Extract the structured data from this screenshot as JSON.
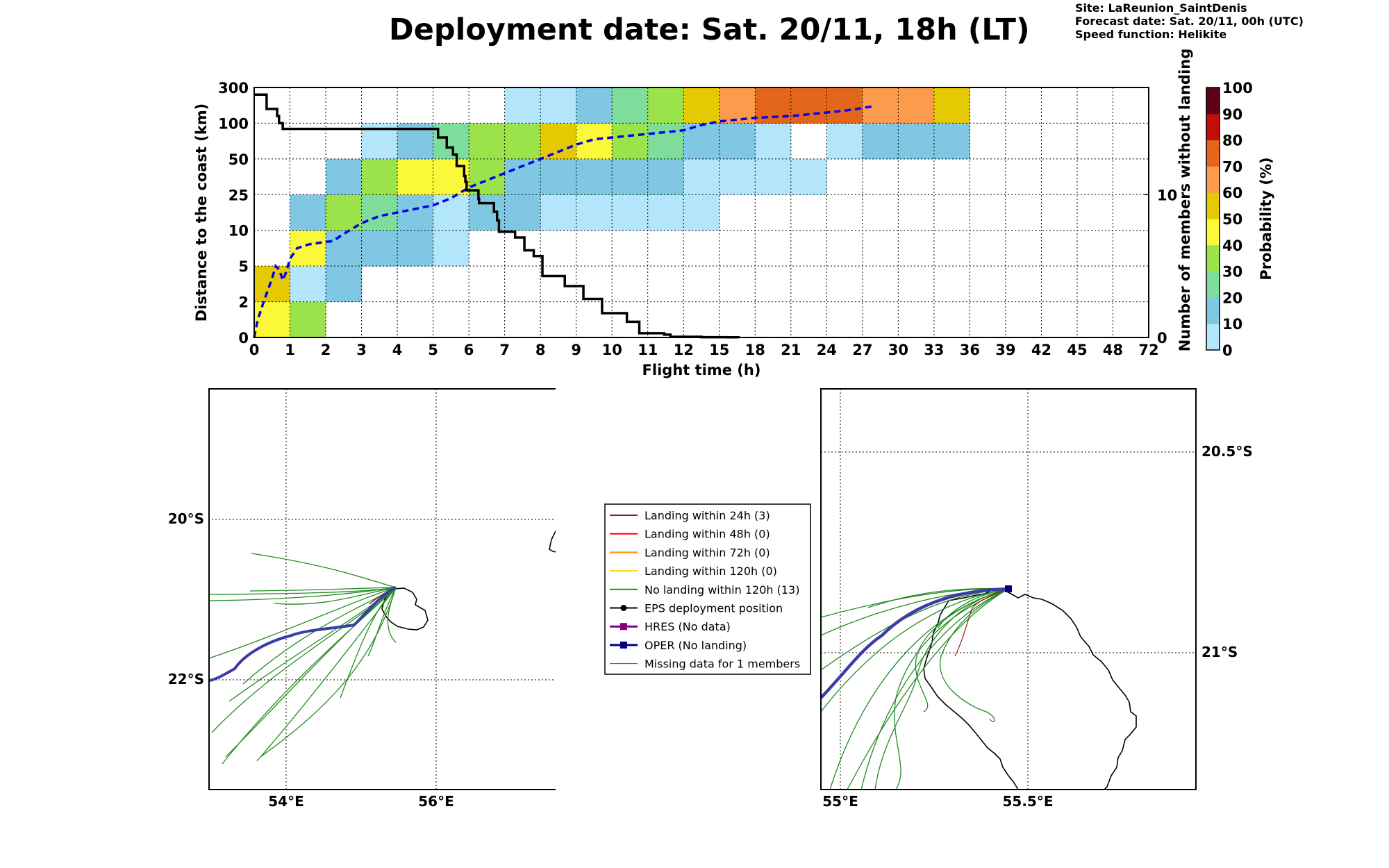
{
  "header": {
    "title": "Deployment date: Sat. 20/11, 18h (LT)",
    "site": "Site: LaReunion_SaintDenis",
    "forecast": "Forecast date: Sat. 20/11, 00h (UTC)",
    "speed": "Speed function: Helikite"
  },
  "chart_data": [
    {
      "type": "heatmap",
      "xlabel": "Flight time (h)",
      "ylabel": "Distance to the coast (km)",
      "y2label": "Number of members without landing",
      "x_ticks": [
        "0",
        "1",
        "2",
        "3",
        "4",
        "5",
        "6",
        "7",
        "8",
        "9",
        "10",
        "11",
        "12",
        "15",
        "18",
        "21",
        "24",
        "27",
        "30",
        "33",
        "36",
        "39",
        "42",
        "45",
        "48",
        "72"
      ],
      "y_ticks": [
        "0",
        "2",
        "5",
        "10",
        "25",
        "50",
        "100",
        "300"
      ],
      "y2_ticks": [
        "0",
        "10"
      ],
      "y2_range": [
        0,
        17.5
      ],
      "colorbar": {
        "label": "Probability (%)",
        "ticks": [
          "0",
          "10",
          "20",
          "30",
          "40",
          "50",
          "60",
          "70",
          "80",
          "90",
          "100"
        ],
        "colors": [
          "#b3e5fb",
          "#7fc7e2",
          "#7edd9a",
          "#9be24b",
          "#fbf83a",
          "#e5c902",
          "#fd9b4c",
          "#e4661d",
          "#c20d0a",
          "#5e0016"
        ]
      },
      "cells": [
        {
          "x": 0,
          "y": 0,
          "p": 40
        },
        {
          "x": 0,
          "y": 1,
          "p": 50
        },
        {
          "x": 1,
          "y": 0,
          "p": 30
        },
        {
          "x": 1,
          "y": 1,
          "p": 0
        },
        {
          "x": 1,
          "y": 2,
          "p": 40
        },
        {
          "x": 1,
          "y": 3,
          "p": 10
        },
        {
          "x": 2,
          "y": 1,
          "p": 10
        },
        {
          "x": 2,
          "y": 2,
          "p": 10
        },
        {
          "x": 2,
          "y": 3,
          "p": 30
        },
        {
          "x": 2,
          "y": 4,
          "p": 10
        },
        {
          "x": 3,
          "y": 2,
          "p": 10
        },
        {
          "x": 3,
          "y": 3,
          "p": 20
        },
        {
          "x": 3,
          "y": 4,
          "p": 30
        },
        {
          "x": 3,
          "y": 5,
          "p": 0
        },
        {
          "x": 4,
          "y": 2,
          "p": 10
        },
        {
          "x": 4,
          "y": 3,
          "p": 10
        },
        {
          "x": 4,
          "y": 4,
          "p": 40
        },
        {
          "x": 4,
          "y": 5,
          "p": 10
        },
        {
          "x": 5,
          "y": 2,
          "p": 0
        },
        {
          "x": 5,
          "y": 3,
          "p": 0
        },
        {
          "x": 5,
          "y": 4,
          "p": 40
        },
        {
          "x": 5,
          "y": 5,
          "p": 20
        },
        {
          "x": 6,
          "y": 3,
          "p": 10
        },
        {
          "x": 6,
          "y": 4,
          "p": 30
        },
        {
          "x": 6,
          "y": 5,
          "p": 30
        },
        {
          "x": 7,
          "y": 3,
          "p": 10
        },
        {
          "x": 7,
          "y": 4,
          "p": 10
        },
        {
          "x": 7,
          "y": 5,
          "p": 30
        },
        {
          "x": 7,
          "y": 6,
          "p": 0
        },
        {
          "x": 8,
          "y": 3,
          "p": 0
        },
        {
          "x": 8,
          "y": 4,
          "p": 10
        },
        {
          "x": 8,
          "y": 5,
          "p": 50
        },
        {
          "x": 8,
          "y": 6,
          "p": 0
        },
        {
          "x": 9,
          "y": 3,
          "p": 0
        },
        {
          "x": 9,
          "y": 4,
          "p": 10
        },
        {
          "x": 9,
          "y": 5,
          "p": 40
        },
        {
          "x": 9,
          "y": 6,
          "p": 10
        },
        {
          "x": 10,
          "y": 3,
          "p": 0
        },
        {
          "x": 10,
          "y": 4,
          "p": 10
        },
        {
          "x": 10,
          "y": 5,
          "p": 30
        },
        {
          "x": 10,
          "y": 6,
          "p": 20
        },
        {
          "x": 11,
          "y": 3,
          "p": 0
        },
        {
          "x": 11,
          "y": 4,
          "p": 10
        },
        {
          "x": 11,
          "y": 5,
          "p": 20
        },
        {
          "x": 11,
          "y": 6,
          "p": 30
        },
        {
          "x": 12,
          "y": 3,
          "p": 0
        },
        {
          "x": 12,
          "y": 4,
          "p": 0
        },
        {
          "x": 12,
          "y": 5,
          "p": 10
        },
        {
          "x": 12,
          "y": 6,
          "p": 50
        },
        {
          "x": 13,
          "y": 4,
          "p": 0
        },
        {
          "x": 13,
          "y": 5,
          "p": 10
        },
        {
          "x": 13,
          "y": 6,
          "p": 60
        },
        {
          "x": 14,
          "y": 4,
          "p": 0
        },
        {
          "x": 14,
          "y": 5,
          "p": 0
        },
        {
          "x": 14,
          "y": 6,
          "p": 70
        },
        {
          "x": 15,
          "y": 4,
          "p": 0
        },
        {
          "x": 15,
          "y": 6,
          "p": 70
        },
        {
          "x": 16,
          "y": 5,
          "p": 0
        },
        {
          "x": 16,
          "y": 6,
          "p": 70
        },
        {
          "x": 17,
          "y": 5,
          "p": 10
        },
        {
          "x": 17,
          "y": 6,
          "p": 60
        },
        {
          "x": 18,
          "y": 5,
          "p": 10
        },
        {
          "x": 18,
          "y": 6,
          "p": 60
        },
        {
          "x": 19,
          "y": 5,
          "p": 10
        },
        {
          "x": 19,
          "y": 6,
          "p": 50
        }
      ],
      "median_distance_km_curve": {
        "color": "#0000ee",
        "points": [
          [
            0,
            0
          ],
          [
            0.1,
            1
          ],
          [
            0.3,
            2.2
          ],
          [
            0.5,
            3.3
          ],
          [
            0.6,
            4
          ],
          [
            0.7,
            3.8
          ],
          [
            0.8,
            3.2
          ],
          [
            0.9,
            3.7
          ],
          [
            1.0,
            4.4
          ],
          [
            1.2,
            5.0
          ],
          [
            1.5,
            5.2
          ],
          [
            1.8,
            5.3
          ],
          [
            2.2,
            5.4
          ],
          [
            2.5,
            5.8
          ],
          [
            3.0,
            6.4
          ],
          [
            3.5,
            6.8
          ],
          [
            4.0,
            7.0
          ],
          [
            4.5,
            7.2
          ],
          [
            5.0,
            7.4
          ],
          [
            5.5,
            7.8
          ],
          [
            6.0,
            8.4
          ],
          [
            6.5,
            8.8
          ],
          [
            7.0,
            9.2
          ],
          [
            7.5,
            9.6
          ],
          [
            8.0,
            10.0
          ],
          [
            8.5,
            10.4
          ],
          [
            9.0,
            10.8
          ],
          [
            9.5,
            11.1
          ],
          [
            10.0,
            11.2
          ],
          [
            10.5,
            11.3
          ],
          [
            11.0,
            11.4
          ],
          [
            11.5,
            11.5
          ],
          [
            12.0,
            11.6
          ],
          [
            12.5,
            11.9
          ],
          [
            13.0,
            12.1
          ],
          [
            13.5,
            12.2
          ],
          [
            14.0,
            12.3
          ],
          [
            14.5,
            12.35
          ],
          [
            15.0,
            12.4
          ],
          [
            15.5,
            12.5
          ],
          [
            16.0,
            12.6
          ],
          [
            16.5,
            12.7
          ],
          [
            17.0,
            12.85
          ],
          [
            17.3,
            12.95
          ]
        ]
      },
      "members_without_landing_steps": [
        [
          0,
          17
        ],
        [
          1,
          17
        ],
        [
          1,
          16
        ],
        [
          1.85,
          16
        ],
        [
          1.85,
          15.5
        ],
        [
          2.0,
          15.5
        ],
        [
          2.0,
          15
        ],
        [
          2.3,
          15
        ],
        [
          2.3,
          14.6
        ],
        [
          14.8,
          14.6
        ],
        [
          14.8,
          14
        ],
        [
          15.5,
          14
        ],
        [
          15.5,
          13.3
        ],
        [
          16.0,
          13.3
        ],
        [
          16.0,
          12.8
        ],
        [
          16.3,
          12.8
        ],
        [
          16.3,
          12
        ],
        [
          16.9,
          12
        ],
        [
          16.9,
          11.3
        ],
        [
          17.0,
          11.3
        ],
        [
          17.0,
          10.9
        ],
        [
          17.1,
          10.9
        ],
        [
          17.1,
          10.3
        ],
        [
          18.05,
          10.3
        ],
        [
          18.05,
          9.7
        ],
        [
          18.1,
          9.7
        ],
        [
          18.1,
          9.4
        ],
        [
          19.3,
          9.4
        ],
        [
          19.3,
          8.8
        ],
        [
          19.55,
          8.8
        ],
        [
          19.55,
          8.2
        ],
        [
          19.7,
          8.2
        ],
        [
          19.7,
          7.4
        ],
        [
          21,
          7.4
        ],
        [
          21,
          7.0
        ],
        [
          21.75,
          7.0
        ],
        [
          21.75,
          6.1
        ],
        [
          22.5,
          6.1
        ],
        [
          22.5,
          5.7
        ],
        [
          23.2,
          5.7
        ],
        [
          23.2,
          4.3
        ],
        [
          25,
          4.3
        ],
        [
          25,
          3.6
        ],
        [
          26.5,
          3.6
        ],
        [
          26.5,
          2.7
        ],
        [
          28,
          2.7
        ],
        [
          28,
          1.7
        ],
        [
          30,
          1.7
        ],
        [
          30,
          1.1
        ],
        [
          31,
          1.1
        ],
        [
          31,
          0.3
        ],
        [
          33,
          0.3
        ],
        [
          33,
          0.2
        ],
        [
          33.5,
          0.2
        ],
        [
          33.5,
          0.05
        ],
        [
          36,
          0.05
        ],
        [
          36,
          0.02
        ],
        [
          38,
          0.02
        ],
        [
          38,
          0.01
        ],
        [
          39,
          0.01
        ],
        [
          39,
          0.0
        ]
      ]
    },
    {
      "type": "map",
      "name": "regional-map",
      "x_ticks": [
        "54°E",
        "56°E"
      ],
      "y_ticks": [
        "20°S",
        "22°S"
      ]
    },
    {
      "type": "map",
      "name": "zoom-map",
      "x_ticks": [
        "55°E",
        "55.5°E"
      ],
      "y_ticks": [
        "20.5°S",
        "21°S"
      ]
    }
  ],
  "legend": {
    "items": [
      {
        "label": "Landing within 24h (3)",
        "color": "#8b1a1a",
        "marker": "none",
        "width": 2
      },
      {
        "label": "Landing within 48h (0)",
        "color": "#ff0000",
        "marker": "none",
        "width": 2
      },
      {
        "label": "Landing within 72h (0)",
        "color": "#ff8c00",
        "marker": "none",
        "width": 2
      },
      {
        "label": "Landing within 120h (0)",
        "color": "#ffd700",
        "marker": "none",
        "width": 2
      },
      {
        "label": "No landing within 120h (13)",
        "color": "#228b22",
        "marker": "none",
        "width": 2
      },
      {
        "label": "EPS deployment position",
        "color": "#000000",
        "marker": "circle",
        "width": 2
      },
      {
        "label": "HRES (No data)",
        "color": "#800080",
        "marker": "square",
        "width": 3
      },
      {
        "label": "OPER (No landing)",
        "color": "#000080",
        "marker": "square",
        "width": 3
      },
      {
        "label": "Missing data for 1 members",
        "color": "#4040ff",
        "marker": "none",
        "width": 1
      }
    ]
  }
}
